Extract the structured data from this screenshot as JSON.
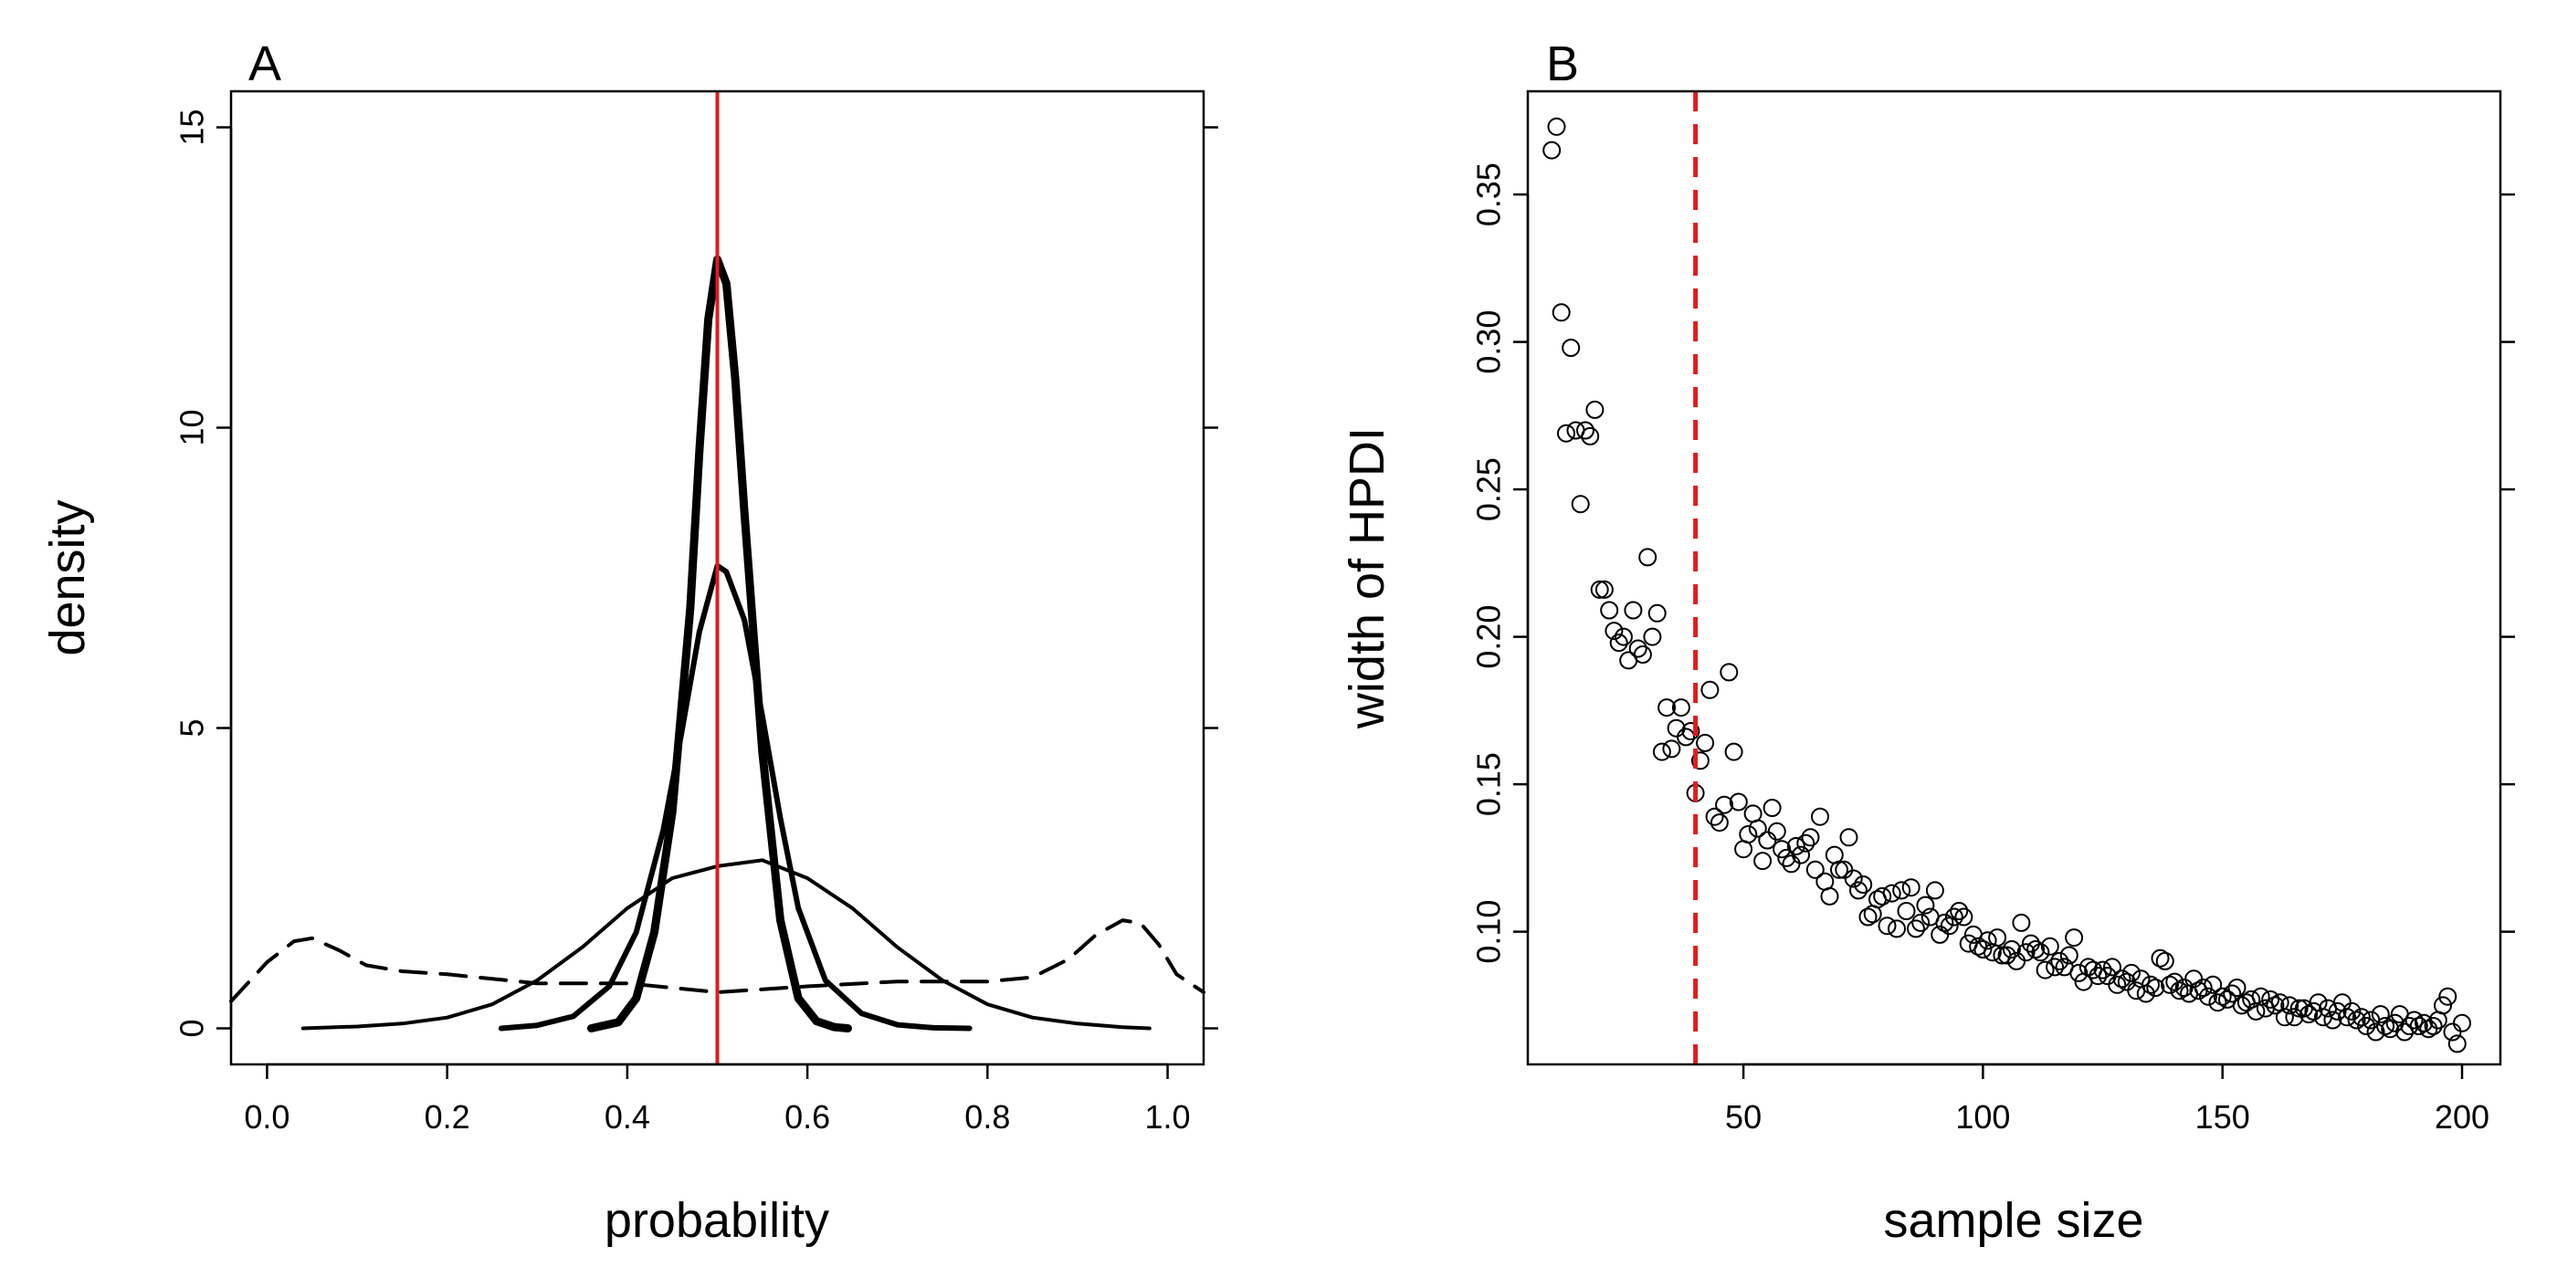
{
  "chart_data": [
    {
      "panel": "A",
      "type": "line",
      "xlabel": "probability",
      "ylabel": "density",
      "xlim": [
        -0.04,
        1.04
      ],
      "ylim": [
        -0.6,
        15.6
      ],
      "xticks": [
        "0.0",
        "0.2",
        "0.4",
        "0.6",
        "0.8",
        "1.0"
      ],
      "yticks": [
        "0",
        "5",
        "10",
        "15"
      ],
      "reference_line": {
        "x": 0.5,
        "color": "#e41a1c",
        "style": "solid"
      },
      "series": [
        {
          "style": "dashed",
          "color": "#000000",
          "x": [
            -0.04,
            0.0,
            0.03,
            0.05,
            0.08,
            0.11,
            0.15,
            0.2,
            0.3,
            0.4,
            0.5,
            0.6,
            0.7,
            0.8,
            0.85,
            0.89,
            0.92,
            0.95,
            0.97,
            0.99,
            1.01,
            1.04
          ],
          "y": [
            0.45,
            1.1,
            1.45,
            1.5,
            1.3,
            1.05,
            0.95,
            0.9,
            0.75,
            0.75,
            0.6,
            0.7,
            0.78,
            0.78,
            0.85,
            1.15,
            1.55,
            1.8,
            1.75,
            1.4,
            0.9,
            0.6
          ]
        },
        {
          "style": "solid",
          "width": "thin",
          "color": "#000000",
          "x": [
            0.04,
            0.1,
            0.15,
            0.2,
            0.25,
            0.3,
            0.35,
            0.4,
            0.45,
            0.5,
            0.55,
            0.6,
            0.65,
            0.7,
            0.75,
            0.8,
            0.85,
            0.9,
            0.95,
            0.98
          ],
          "y": [
            0.0,
            0.03,
            0.08,
            0.18,
            0.4,
            0.8,
            1.35,
            2.0,
            2.5,
            2.7,
            2.8,
            2.5,
            2.0,
            1.35,
            0.8,
            0.4,
            0.18,
            0.08,
            0.02,
            0.0
          ]
        },
        {
          "style": "solid",
          "width": "medium",
          "color": "#000000",
          "x": [
            0.26,
            0.3,
            0.34,
            0.38,
            0.41,
            0.44,
            0.46,
            0.48,
            0.5,
            0.51,
            0.53,
            0.55,
            0.57,
            0.59,
            0.62,
            0.66,
            0.7,
            0.74,
            0.78
          ],
          "y": [
            0.0,
            0.05,
            0.2,
            0.7,
            1.6,
            3.3,
            4.9,
            6.6,
            7.7,
            7.6,
            6.8,
            5.2,
            3.5,
            2.0,
            0.8,
            0.25,
            0.06,
            0.01,
            0.0
          ]
        },
        {
          "style": "solid",
          "width": "thick",
          "color": "#000000",
          "x": [
            0.36,
            0.39,
            0.41,
            0.43,
            0.45,
            0.47,
            0.48,
            0.49,
            0.5,
            0.51,
            0.52,
            0.53,
            0.55,
            0.57,
            0.59,
            0.61,
            0.63,
            0.645
          ],
          "y": [
            0.0,
            0.1,
            0.5,
            1.6,
            3.6,
            7.0,
            9.6,
            11.8,
            12.8,
            12.4,
            10.8,
            8.6,
            4.6,
            1.8,
            0.5,
            0.12,
            0.02,
            0.0
          ]
        }
      ]
    },
    {
      "panel": "B",
      "type": "scatter",
      "xlabel": "sample size",
      "ylabel": "width of HPDI",
      "xlim": [
        5,
        208
      ],
      "ylim": [
        0.055,
        0.385
      ],
      "xticks": [
        "50",
        "100",
        "150",
        "200"
      ],
      "yticks": [
        "0.10",
        "0.15",
        "0.20",
        "0.25",
        "0.30",
        "0.35"
      ],
      "reference_line": {
        "x": 40,
        "color": "#e41a1c",
        "style": "dashed"
      },
      "points": [
        [
          10,
          0.365
        ],
        [
          11,
          0.373
        ],
        [
          12,
          0.31
        ],
        [
          13,
          0.269
        ],
        [
          14,
          0.298
        ],
        [
          15,
          0.27
        ],
        [
          16,
          0.245
        ],
        [
          17,
          0.27
        ],
        [
          18,
          0.268
        ],
        [
          19,
          0.277
        ],
        [
          20,
          0.216
        ],
        [
          21,
          0.216
        ],
        [
          22,
          0.209
        ],
        [
          23,
          0.202
        ],
        [
          24,
          0.198
        ],
        [
          25,
          0.2
        ],
        [
          26,
          0.192
        ],
        [
          27,
          0.209
        ],
        [
          28,
          0.196
        ],
        [
          29,
          0.194
        ],
        [
          30,
          0.227
        ],
        [
          31,
          0.2
        ],
        [
          32,
          0.208
        ],
        [
          33,
          0.161
        ],
        [
          34,
          0.176
        ],
        [
          35,
          0.162
        ],
        [
          36,
          0.169
        ],
        [
          37,
          0.176
        ],
        [
          38,
          0.166
        ],
        [
          39,
          0.168
        ],
        [
          40,
          0.147
        ],
        [
          41,
          0.158
        ],
        [
          42,
          0.164
        ],
        [
          43,
          0.182
        ],
        [
          44,
          0.139
        ],
        [
          45,
          0.137
        ],
        [
          46,
          0.143
        ],
        [
          47,
          0.188
        ],
        [
          48,
          0.161
        ],
        [
          49,
          0.144
        ],
        [
          50,
          0.128
        ],
        [
          51,
          0.133
        ],
        [
          52,
          0.14
        ],
        [
          53,
          0.135
        ],
        [
          54,
          0.124
        ],
        [
          55,
          0.131
        ],
        [
          56,
          0.142
        ],
        [
          57,
          0.134
        ],
        [
          58,
          0.128
        ],
        [
          59,
          0.125
        ],
        [
          60,
          0.123
        ],
        [
          61,
          0.129
        ],
        [
          62,
          0.126
        ],
        [
          63,
          0.13
        ],
        [
          64,
          0.132
        ],
        [
          65,
          0.121
        ],
        [
          66,
          0.139
        ],
        [
          67,
          0.117
        ],
        [
          68,
          0.112
        ],
        [
          69,
          0.126
        ],
        [
          70,
          0.121
        ],
        [
          71,
          0.121
        ],
        [
          72,
          0.132
        ],
        [
          73,
          0.118
        ],
        [
          74,
          0.114
        ],
        [
          75,
          0.116
        ],
        [
          76,
          0.105
        ],
        [
          77,
          0.106
        ],
        [
          78,
          0.111
        ],
        [
          79,
          0.112
        ],
        [
          80,
          0.102
        ],
        [
          81,
          0.113
        ],
        [
          82,
          0.101
        ],
        [
          83,
          0.114
        ],
        [
          84,
          0.107
        ],
        [
          85,
          0.115
        ],
        [
          86,
          0.101
        ],
        [
          87,
          0.103
        ],
        [
          88,
          0.109
        ],
        [
          89,
          0.105
        ],
        [
          90,
          0.114
        ],
        [
          91,
          0.099
        ],
        [
          92,
          0.103
        ],
        [
          93,
          0.102
        ],
        [
          94,
          0.105
        ],
        [
          95,
          0.107
        ],
        [
          96,
          0.105
        ],
        [
          97,
          0.096
        ],
        [
          98,
          0.099
        ],
        [
          99,
          0.095
        ],
        [
          100,
          0.094
        ],
        [
          101,
          0.097
        ],
        [
          102,
          0.093
        ],
        [
          103,
          0.098
        ],
        [
          104,
          0.092
        ],
        [
          105,
          0.092
        ],
        [
          106,
          0.094
        ],
        [
          107,
          0.09
        ],
        [
          108,
          0.103
        ],
        [
          109,
          0.093
        ],
        [
          110,
          0.096
        ],
        [
          111,
          0.094
        ],
        [
          112,
          0.093
        ],
        [
          113,
          0.087
        ],
        [
          114,
          0.095
        ],
        [
          115,
          0.088
        ],
        [
          116,
          0.09
        ],
        [
          117,
          0.088
        ],
        [
          118,
          0.092
        ],
        [
          119,
          0.098
        ],
        [
          120,
          0.086
        ],
        [
          121,
          0.083
        ],
        [
          122,
          0.088
        ],
        [
          123,
          0.087
        ],
        [
          124,
          0.085
        ],
        [
          125,
          0.087
        ],
        [
          126,
          0.085
        ],
        [
          127,
          0.088
        ],
        [
          128,
          0.082
        ],
        [
          129,
          0.084
        ],
        [
          130,
          0.083
        ],
        [
          131,
          0.086
        ],
        [
          132,
          0.08
        ],
        [
          133,
          0.084
        ],
        [
          134,
          0.079
        ],
        [
          135,
          0.082
        ],
        [
          136,
          0.081
        ],
        [
          137,
          0.091
        ],
        [
          138,
          0.09
        ],
        [
          139,
          0.082
        ],
        [
          140,
          0.083
        ],
        [
          141,
          0.08
        ],
        [
          142,
          0.081
        ],
        [
          143,
          0.079
        ],
        [
          144,
          0.084
        ],
        [
          145,
          0.08
        ],
        [
          146,
          0.081
        ],
        [
          147,
          0.078
        ],
        [
          148,
          0.082
        ],
        [
          149,
          0.076
        ],
        [
          150,
          0.078
        ],
        [
          151,
          0.077
        ],
        [
          152,
          0.079
        ],
        [
          153,
          0.081
        ],
        [
          154,
          0.075
        ],
        [
          155,
          0.076
        ],
        [
          156,
          0.077
        ],
        [
          157,
          0.073
        ],
        [
          158,
          0.078
        ],
        [
          159,
          0.074
        ],
        [
          160,
          0.077
        ],
        [
          161,
          0.075
        ],
        [
          162,
          0.076
        ],
        [
          163,
          0.071
        ],
        [
          164,
          0.075
        ],
        [
          165,
          0.071
        ],
        [
          166,
          0.074
        ],
        [
          167,
          0.074
        ],
        [
          168,
          0.072
        ],
        [
          169,
          0.073
        ],
        [
          170,
          0.076
        ],
        [
          171,
          0.071
        ],
        [
          172,
          0.074
        ],
        [
          173,
          0.07
        ],
        [
          174,
          0.073
        ],
        [
          175,
          0.076
        ],
        [
          176,
          0.071
        ],
        [
          177,
          0.073
        ],
        [
          178,
          0.07
        ],
        [
          179,
          0.071
        ],
        [
          180,
          0.068
        ],
        [
          181,
          0.07
        ],
        [
          182,
          0.066
        ],
        [
          183,
          0.072
        ],
        [
          184,
          0.068
        ],
        [
          185,
          0.067
        ],
        [
          186,
          0.069
        ],
        [
          187,
          0.072
        ],
        [
          188,
          0.066
        ],
        [
          189,
          0.068
        ],
        [
          190,
          0.07
        ],
        [
          191,
          0.068
        ],
        [
          192,
          0.069
        ],
        [
          193,
          0.067
        ],
        [
          194,
          0.068
        ],
        [
          195,
          0.07
        ],
        [
          196,
          0.075
        ],
        [
          197,
          0.078
        ],
        [
          198,
          0.066
        ],
        [
          199,
          0.062
        ],
        [
          200,
          0.069
        ]
      ]
    }
  ]
}
